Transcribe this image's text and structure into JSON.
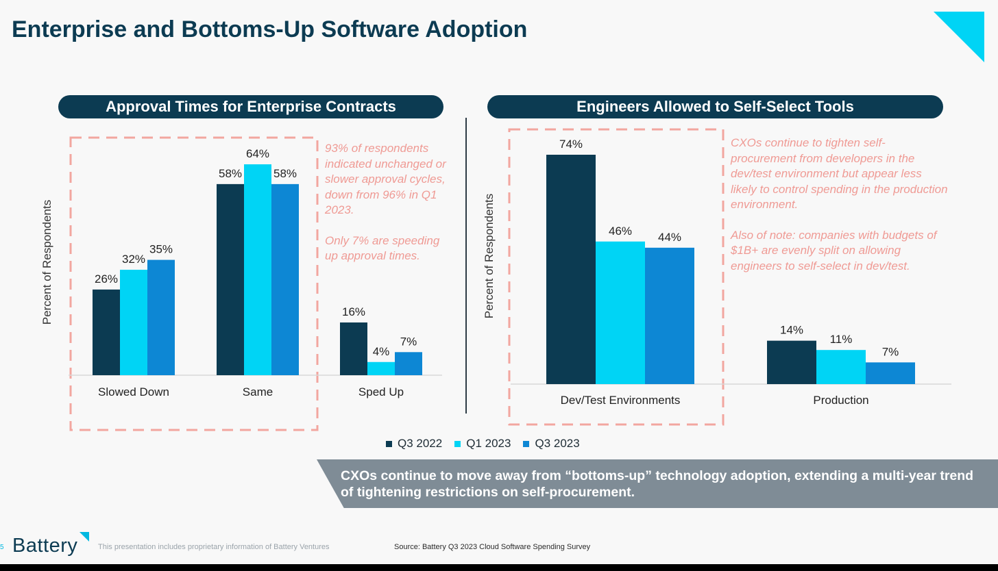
{
  "page": {
    "title": "Enterprise and Bottoms-Up Software Adoption",
    "banner": "CXOs continue to move away from “bottoms-up” technology adoption, extending a multi-year trend of tightening restrictions on self-procurement.",
    "footer": {
      "page_number": "5",
      "logo": "Battery",
      "disclaimer": "This presentation includes proprietary information of Battery Ventures",
      "source": "Source: Battery Q3 2023 Cloud Software Spending Survey"
    }
  },
  "colors": {
    "title": "#0c3b52",
    "highlight_box": "#f2a69f",
    "annotation": "#ef9a94",
    "banner": "#7f8c96",
    "accent": "#00d4f5"
  },
  "legend": [
    {
      "name": "Q3 2022",
      "color": "#0c3b52"
    },
    {
      "name": "Q1 2023",
      "color": "#00d4f5"
    },
    {
      "name": "Q3 2023",
      "color": "#0d87d4"
    }
  ],
  "annotations": {
    "left": [
      "93% of respondents indicated unchanged or slower approval cycles, down from 96% in Q1 2023.",
      "Only 7% are speeding up approval times."
    ],
    "right": [
      "CXOs continue to tighten self-procurement from developers in the dev/test environment but appear less likely to control spending in the production environment.",
      "Also of note: companies with budgets of $1B+ are evenly split on allowing engineers to self-select in dev/test."
    ]
  },
  "chart_data": [
    {
      "type": "bar",
      "title": "Approval Times for Enterprise Contracts",
      "ylabel": "Percent of Respondents",
      "categories": [
        "Slowed Down",
        "Same",
        "Sped Up"
      ],
      "series": [
        {
          "name": "Q3 2022",
          "values": [
            26,
            58,
            16
          ]
        },
        {
          "name": "Q1 2023",
          "values": [
            32,
            64,
            4
          ]
        },
        {
          "name": "Q3 2023",
          "values": [
            35,
            58,
            7
          ]
        }
      ],
      "labels": [
        [
          "26%",
          "32%",
          "35%"
        ],
        [
          "58%",
          "64%",
          "58%"
        ],
        [
          "16%",
          "4%",
          "7%"
        ]
      ],
      "ylim": [
        0,
        64
      ],
      "grid": false,
      "highlighted_categories": [
        "Slowed Down",
        "Same"
      ]
    },
    {
      "type": "bar",
      "title": "Engineers Allowed to Self-Select Tools",
      "ylabel": "Percent of Respondents",
      "categories": [
        "Dev/Test Environments",
        "Production"
      ],
      "series": [
        {
          "name": "Q3 2022",
          "values": [
            74,
            14
          ]
        },
        {
          "name": "Q1 2023",
          "values": [
            46,
            11
          ]
        },
        {
          "name": "Q3 2023",
          "values": [
            44,
            7
          ]
        }
      ],
      "labels": [
        [
          "74%",
          "46%",
          "44%"
        ],
        [
          "14%",
          "11%",
          "7%"
        ]
      ],
      "ylim": [
        0,
        74
      ],
      "grid": false,
      "highlighted_categories": [
        "Dev/Test Environments"
      ]
    }
  ]
}
